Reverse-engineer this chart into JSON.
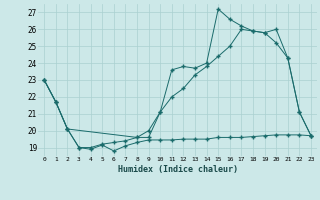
{
  "xlabel": "Humidex (Indice chaleur)",
  "bg_color": "#cce8e8",
  "grid_color": "#aad0d0",
  "line_color": "#1a6b6b",
  "xlim": [
    -0.5,
    23.5
  ],
  "ylim": [
    18.5,
    27.5
  ],
  "xticks": [
    0,
    1,
    2,
    3,
    4,
    5,
    6,
    7,
    8,
    9,
    10,
    11,
    12,
    13,
    14,
    15,
    16,
    17,
    18,
    19,
    20,
    21,
    22,
    23
  ],
  "yticks": [
    19,
    20,
    21,
    22,
    23,
    24,
    25,
    26,
    27
  ],
  "series1_x": [
    0,
    1,
    2,
    3,
    4,
    5,
    6,
    7,
    8,
    9,
    10,
    11,
    12,
    13,
    14,
    15,
    16,
    17,
    18,
    19,
    20,
    21,
    22,
    23
  ],
  "series1_y": [
    23.0,
    21.7,
    20.1,
    19.0,
    18.9,
    19.15,
    18.8,
    19.1,
    19.3,
    19.45,
    19.45,
    19.45,
    19.5,
    19.5,
    19.5,
    19.6,
    19.6,
    19.6,
    19.65,
    19.7,
    19.75,
    19.75,
    19.75,
    19.7
  ],
  "series2_x": [
    0,
    1,
    2,
    3,
    4,
    5,
    6,
    7,
    8,
    9,
    10,
    11,
    12,
    13,
    14,
    15,
    16,
    17,
    18,
    19,
    20,
    21,
    22,
    23
  ],
  "series2_y": [
    23.0,
    21.7,
    20.1,
    19.0,
    19.0,
    19.2,
    19.3,
    19.4,
    19.6,
    20.0,
    21.1,
    22.0,
    22.5,
    23.3,
    23.8,
    24.4,
    25.0,
    26.0,
    25.9,
    25.8,
    25.2,
    24.3,
    21.1,
    19.7
  ],
  "series3_x": [
    0,
    1,
    2,
    8,
    9,
    10,
    11,
    12,
    13,
    14,
    15,
    16,
    17,
    18,
    19,
    20,
    21,
    22,
    23
  ],
  "series3_y": [
    23.0,
    21.7,
    20.1,
    19.6,
    19.6,
    21.1,
    23.6,
    23.8,
    23.7,
    24.0,
    27.2,
    26.6,
    26.2,
    25.9,
    25.8,
    26.0,
    24.3,
    21.1,
    19.7
  ]
}
